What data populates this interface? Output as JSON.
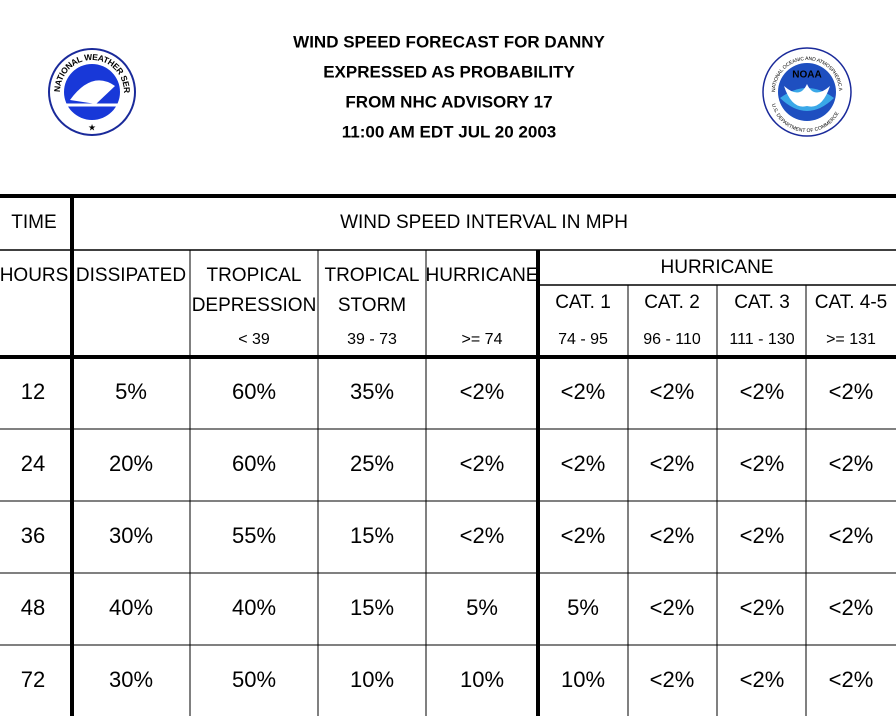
{
  "header": {
    "title_lines": [
      "WIND SPEED FORECAST FOR DANNY",
      "EXPRESSED AS PROBABILITY",
      "FROM NHC ADVISORY   17",
      "11:00 AM EDT JUL 20 2003"
    ]
  },
  "logos": {
    "nws": "NATIONAL WEATHER SERVICE",
    "noaa": {
      "name": "NOAA",
      "ring": "NATIONAL OCEANIC AND ATMOSPHERIC ADMINISTRATION",
      "bottom": "U.S. DEPARTMENT OF COMMERCE"
    }
  },
  "table": {
    "time_label": "TIME",
    "interval_label": "WIND SPEED INTERVAL IN MPH",
    "hours_label": "HOURS",
    "columns": [
      {
        "lines": [
          "DISSIPATED"
        ]
      },
      {
        "lines": [
          "TROPICAL",
          "DEPRESSION"
        ],
        "range": "< 39"
      },
      {
        "lines": [
          "TROPICAL",
          "STORM"
        ],
        "range": "39 - 73"
      },
      {
        "lines": [
          "HURRICANE"
        ],
        "range": ">= 74"
      }
    ],
    "hurricane_group": "HURRICANE",
    "cat_columns": [
      {
        "name": "CAT. 1",
        "range": "74 - 95"
      },
      {
        "name": "CAT. 2",
        "range": "96 - 110"
      },
      {
        "name": "CAT. 3",
        "range": "111 - 130"
      },
      {
        "name": "CAT. 4-5",
        "range": ">= 131"
      }
    ],
    "rows": [
      [
        "12",
        "5%",
        "60%",
        "35%",
        "<2%",
        "<2%",
        "<2%",
        "<2%",
        "<2%"
      ],
      [
        "24",
        "20%",
        "60%",
        "25%",
        "<2%",
        "<2%",
        "<2%",
        "<2%",
        "<2%"
      ],
      [
        "36",
        "30%",
        "55%",
        "15%",
        "<2%",
        "<2%",
        "<2%",
        "<2%",
        "<2%"
      ],
      [
        "48",
        "40%",
        "40%",
        "15%",
        "5%",
        "5%",
        "<2%",
        "<2%",
        "<2%"
      ],
      [
        "72",
        "30%",
        "50%",
        "10%",
        "10%",
        "10%",
        "<2%",
        "<2%",
        "<2%"
      ]
    ]
  }
}
